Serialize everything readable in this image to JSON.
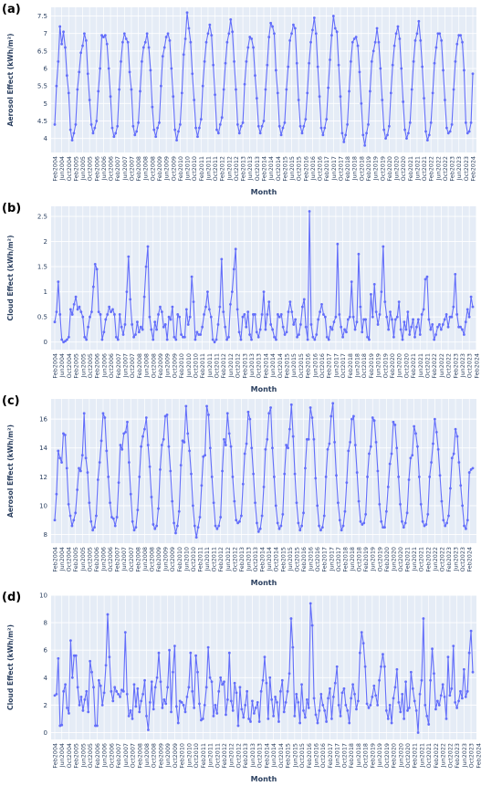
{
  "figure": {
    "xlabel": "Month",
    "x_ticks": [
      "Feb2004",
      "Jun2004",
      "Oct2004",
      "Feb2005",
      "Jun2005",
      "Oct2005",
      "Feb2006",
      "Jun2006",
      "Oct2006",
      "Feb2007",
      "Jun2007",
      "Oct2007",
      "Feb2008",
      "Jun2008",
      "Oct2008",
      "Feb2009",
      "Jun2009",
      "Oct2009",
      "Feb2010",
      "Jun2010",
      "Oct2010",
      "Feb2011",
      "Jun2011",
      "Oct2011",
      "Feb2012",
      "Jun2012",
      "Oct2012",
      "Feb2013",
      "Jun2013",
      "Oct2013",
      "Feb2014",
      "Jun2014",
      "Oct2014",
      "Feb2015",
      "Jun2015",
      "Oct2015",
      "Feb2016",
      "Jun2016",
      "Oct2016",
      "Feb2017",
      "Jun2017",
      "Oct2017",
      "Feb2018",
      "Jun2018",
      "Oct2018",
      "Feb2019",
      "Jun2019",
      "Oct2019",
      "Feb2020",
      "Jun2020",
      "Oct2020",
      "Feb2021",
      "Jun2021",
      "Oct2021",
      "Feb2022",
      "Jun2022",
      "Oct2022",
      "Feb2023",
      "Jun2023",
      "Oct2023",
      "Feb2024"
    ],
    "colors": {
      "plot_bg": "#e5ecf6",
      "grid": "#ffffff",
      "line": "#636efa",
      "text": "#2a3f5f",
      "panel_label": "#000000"
    }
  },
  "chart_data": [
    {
      "panel": "(a)",
      "type": "line",
      "ylabel": "Aerosol Effect (kWh/m²)",
      "ylim": [
        3.6,
        7.75
      ],
      "yticks": [
        4,
        4.5,
        5,
        5.5,
        6,
        6.5,
        7,
        7.5
      ],
      "ytick_labels": [
        "4",
        "4.5",
        "5",
        "5.5",
        "6",
        "6.5",
        "7",
        "7.5"
      ],
      "x": {
        "start": "Feb2004",
        "frequency": "monthly",
        "count": 241
      },
      "values": [
        4.4,
        5.5,
        6.2,
        7.2,
        6.7,
        7.05,
        6.6,
        5.8,
        5.3,
        4.25,
        3.95,
        4.15,
        4.4,
        5.4,
        5.9,
        6.45,
        6.65,
        7.0,
        6.8,
        5.85,
        5.1,
        4.4,
        4.15,
        4.3,
        4.5,
        5.35,
        6.0,
        6.95,
        6.9,
        6.95,
        6.7,
        6.0,
        5.2,
        4.3,
        4.05,
        4.15,
        4.35,
        5.4,
        6.2,
        6.75,
        7.0,
        6.85,
        6.75,
        5.9,
        5.4,
        4.35,
        4.1,
        4.2,
        4.45,
        5.35,
        6.2,
        6.6,
        6.75,
        7.0,
        6.6,
        5.95,
        4.9,
        4.25,
        4.05,
        4.3,
        4.45,
        5.5,
        6.35,
        6.6,
        6.9,
        7.0,
        6.8,
        6.0,
        5.2,
        4.25,
        3.95,
        4.2,
        4.4,
        5.3,
        6.4,
        6.85,
        7.6,
        7.15,
        6.75,
        5.85,
        5.1,
        4.3,
        4.05,
        4.3,
        4.55,
        5.5,
        6.2,
        6.75,
        7.0,
        7.25,
        6.95,
        6.1,
        5.25,
        4.25,
        4.15,
        4.4,
        4.6,
        5.4,
        6.15,
        6.75,
        7.0,
        7.4,
        7.05,
        6.2,
        5.4,
        4.4,
        4.15,
        4.35,
        4.45,
        5.55,
        6.2,
        6.6,
        6.9,
        6.85,
        6.6,
        5.8,
        5.15,
        4.35,
        4.15,
        4.35,
        4.5,
        5.4,
        6.1,
        6.9,
        7.3,
        7.2,
        7.0,
        5.95,
        5.3,
        4.35,
        4.1,
        4.3,
        4.45,
        5.4,
        6.05,
        6.8,
        7.0,
        7.25,
        7.15,
        6.15,
        5.1,
        4.35,
        4.15,
        4.35,
        4.55,
        5.3,
        6.15,
        6.75,
        7.1,
        7.45,
        7.0,
        6.05,
        5.2,
        4.3,
        4.1,
        4.3,
        4.55,
        5.45,
        6.25,
        6.95,
        7.5,
        7.15,
        7.05,
        6.1,
        5.2,
        4.15,
        3.9,
        4.1,
        4.4,
        5.35,
        6.2,
        6.75,
        6.85,
        6.9,
        6.65,
        5.9,
        5.0,
        4.1,
        3.8,
        4.15,
        4.4,
        5.35,
        6.2,
        6.5,
        6.75,
        7.15,
        6.75,
        6.0,
        5.1,
        4.25,
        4.0,
        4.1,
        4.35,
        5.3,
        6.1,
        6.65,
        7.0,
        7.2,
        6.85,
        6.0,
        5.05,
        4.25,
        4.0,
        4.15,
        4.45,
        5.4,
        6.2,
        6.8,
        7.0,
        7.35,
        6.8,
        6.05,
        5.15,
        4.2,
        3.95,
        4.1,
        4.45,
        5.3,
        6.15,
        6.6,
        7.0,
        7.0,
        6.8,
        5.95,
        5.1,
        4.3,
        4.15,
        4.2,
        4.4,
        5.4,
        6.2,
        6.7,
        6.95,
        6.95,
        6.75,
        5.95,
        4.45,
        4.15,
        4.2,
        4.45,
        5.85
      ]
    },
    {
      "panel": "(b)",
      "type": "line",
      "ylabel": "Cloud Effect (kWh/m²)",
      "ylim": [
        -0.15,
        2.7
      ],
      "yticks": [
        0,
        0.5,
        1,
        1.5,
        2,
        2.5
      ],
      "ytick_labels": [
        "0",
        "0.5",
        "1",
        "1.5",
        "2",
        "2.5"
      ],
      "x": {
        "start": "Feb2004",
        "frequency": "monthly",
        "count": 241
      },
      "values": [
        0.4,
        0.6,
        1.2,
        0.55,
        0.05,
        0.0,
        0.02,
        0.05,
        0.1,
        0.65,
        0.55,
        0.75,
        0.9,
        0.65,
        0.7,
        0.6,
        0.5,
        0.1,
        0.05,
        0.3,
        0.5,
        0.6,
        1.1,
        1.55,
        1.45,
        0.6,
        0.55,
        0.05,
        0.2,
        0.45,
        0.55,
        0.7,
        0.6,
        0.65,
        0.55,
        0.1,
        0.05,
        0.55,
        0.3,
        0.15,
        0.35,
        1.0,
        1.7,
        0.85,
        0.35,
        0.1,
        0.15,
        0.4,
        0.2,
        0.3,
        0.25,
        0.9,
        1.5,
        1.9,
        0.5,
        0.25,
        0.05,
        0.4,
        0.25,
        0.55,
        0.7,
        0.6,
        0.3,
        0.35,
        0.05,
        0.5,
        0.45,
        0.7,
        0.1,
        0.05,
        0.55,
        0.5,
        0.15,
        0.1,
        0.1,
        0.65,
        0.35,
        0.5,
        1.3,
        0.8,
        0.05,
        0.2,
        0.15,
        0.15,
        0.3,
        0.55,
        0.7,
        1.0,
        0.65,
        0.5,
        0.05,
        0.0,
        0.05,
        0.35,
        0.7,
        1.65,
        0.6,
        0.3,
        0.05,
        0.1,
        0.75,
        1.0,
        1.45,
        1.85,
        0.65,
        0.2,
        0.05,
        0.5,
        0.55,
        0.3,
        0.6,
        0.15,
        0.05,
        0.55,
        0.55,
        0.2,
        0.1,
        0.25,
        0.55,
        1.0,
        0.25,
        0.55,
        0.8,
        0.35,
        0.25,
        0.1,
        0.05,
        0.55,
        0.5,
        0.55,
        0.3,
        0.15,
        0.2,
        0.6,
        0.8,
        0.6,
        0.35,
        0.45,
        0.1,
        0.15,
        0.35,
        0.7,
        0.85,
        0.3,
        0.05,
        2.6,
        0.35,
        0.1,
        0.05,
        0.15,
        0.45,
        0.6,
        0.75,
        0.55,
        0.5,
        0.1,
        0.05,
        0.3,
        0.25,
        0.4,
        0.5,
        1.95,
        0.55,
        0.3,
        0.1,
        0.25,
        0.2,
        0.45,
        0.5,
        1.2,
        0.5,
        0.25,
        0.4,
        1.75,
        0.7,
        0.2,
        0.45,
        0.45,
        0.1,
        0.05,
        0.95,
        0.5,
        1.15,
        0.6,
        0.35,
        0.55,
        1.0,
        1.9,
        0.8,
        0.5,
        0.25,
        0.6,
        0.45,
        0.1,
        0.45,
        0.5,
        0.8,
        0.25,
        0.05,
        0.4,
        0.25,
        0.6,
        0.15,
        0.3,
        0.45,
        0.1,
        0.3,
        0.45,
        0.15,
        0.55,
        0.65,
        1.25,
        1.3,
        0.45,
        0.25,
        0.35,
        0.05,
        0.15,
        0.3,
        0.35,
        0.25,
        0.35,
        0.45,
        0.55,
        0.3,
        0.5,
        0.5,
        0.7,
        1.35,
        0.55,
        0.3,
        0.3,
        0.25,
        0.15,
        0.4,
        0.65,
        0.5,
        0.9,
        0.7
      ]
    },
    {
      "panel": "(c)",
      "type": "line",
      "ylabel": "Aerosol Effect (kWh/m²)",
      "ylim": [
        7.4,
        17.4
      ],
      "yticks": [
        8,
        10,
        12,
        14,
        16
      ],
      "ytick_labels": [
        "8",
        "10",
        "12",
        "14",
        "16"
      ],
      "x": {
        "start": "Feb2004",
        "frequency": "monthly",
        "count": 241
      },
      "values": [
        9.0,
        10.8,
        13.8,
        13.3,
        13.0,
        15.0,
        14.9,
        12.6,
        10.1,
        9.3,
        8.6,
        9.0,
        9.5,
        11.1,
        12.6,
        12.4,
        13.5,
        16.4,
        13.3,
        12.3,
        10.2,
        8.9,
        8.3,
        8.5,
        9.3,
        11.8,
        13.0,
        14.5,
        16.4,
        16.1,
        13.8,
        12.0,
        10.2,
        9.2,
        9.1,
        8.6,
        9.2,
        11.6,
        14.2,
        13.9,
        15.0,
        15.1,
        15.8,
        13.0,
        10.8,
        8.9,
        8.3,
        8.5,
        9.7,
        12.0,
        14.1,
        14.8,
        15.3,
        16.1,
        14.2,
        12.7,
        10.6,
        8.7,
        8.4,
        8.6,
        9.8,
        12.5,
        14.2,
        14.6,
        16.2,
        16.3,
        14.1,
        12.4,
        10.3,
        8.8,
        8.1,
        8.6,
        9.6,
        12.8,
        14.5,
        14.4,
        16.9,
        15.0,
        13.8,
        12.2,
        10.0,
        8.6,
        7.8,
        8.5,
        9.2,
        11.4,
        13.4,
        13.5,
        16.9,
        16.3,
        14.0,
        12.0,
        10.2,
        8.6,
        8.4,
        8.6,
        9.2,
        12.4,
        14.6,
        14.2,
        16.4,
        15.0,
        14.1,
        12.0,
        10.3,
        9.0,
        8.8,
        8.9,
        9.3,
        11.5,
        13.6,
        14.3,
        16.5,
        16.0,
        14.0,
        12.2,
        10.2,
        8.8,
        8.2,
        8.4,
        9.3,
        11.3,
        13.9,
        14.6,
        16.4,
        16.8,
        14.0,
        12.0,
        10.0,
        8.8,
        8.4,
        8.6,
        9.4,
        12.2,
        14.2,
        14.0,
        15.3,
        17.0,
        14.8,
        12.2,
        10.2,
        8.8,
        8.3,
        8.6,
        9.5,
        12.6,
        14.6,
        14.6,
        16.8,
        16.1,
        14.6,
        11.9,
        10.0,
        8.6,
        8.3,
        8.5,
        9.3,
        12.0,
        13.9,
        14.3,
        16.2,
        17.1,
        14.4,
        12.1,
        10.2,
        9.0,
        8.3,
        8.6,
        9.6,
        11.6,
        13.8,
        14.4,
        16.0,
        16.2,
        14.2,
        12.3,
        10.3,
        8.9,
        8.7,
        8.8,
        9.4,
        12.0,
        13.6,
        14.1,
        16.1,
        15.9,
        14.4,
        12.4,
        10.1,
        8.9,
        8.5,
        8.5,
        9.6,
        11.3,
        12.9,
        13.6,
        15.8,
        15.6,
        14.0,
        12.0,
        10.1,
        8.9,
        8.5,
        8.8,
        9.5,
        11.8,
        13.3,
        13.5,
        15.5,
        15.0,
        14.1,
        12.0,
        10.1,
        8.9,
        8.6,
        8.7,
        9.4,
        12.0,
        13.0,
        14.3,
        16.0,
        15.1,
        13.9,
        12.1,
        10.3,
        9.0,
        8.6,
        8.8,
        9.3,
        11.2,
        13.3,
        13.6,
        15.3,
        14.8,
        13.0,
        11.4,
        10.0,
        8.6,
        8.4,
        9.0,
        12.3,
        12.5,
        12.6
      ]
    },
    {
      "panel": "(d)",
      "type": "line",
      "ylabel": "Cloud Effect (kWh/m²)",
      "ylim": [
        -0.5,
        10
      ],
      "yticks": [
        0,
        2,
        4,
        6,
        8,
        10
      ],
      "ytick_labels": [
        "0",
        "2",
        "4",
        "6",
        "8",
        "10"
      ],
      "x": {
        "start": "Feb2004",
        "frequency": "monthly",
        "count": 241
      },
      "values": [
        2.7,
        2.8,
        5.4,
        0.5,
        0.55,
        3.0,
        3.5,
        1.8,
        1.4,
        6.7,
        4.0,
        5.6,
        5.6,
        3.3,
        2.0,
        2.6,
        1.6,
        2.4,
        3.0,
        1.5,
        5.2,
        4.4,
        3.3,
        0.5,
        0.5,
        3.8,
        3.4,
        2.0,
        2.9,
        4.9,
        8.6,
        5.5,
        3.0,
        2.3,
        3.3,
        3.0,
        2.8,
        2.6,
        3.1,
        3.0,
        7.3,
        2.8,
        1.2,
        1.6,
        1.0,
        3.5,
        1.9,
        3.2,
        1.5,
        2.3,
        2.8,
        3.8,
        1.2,
        0.2,
        2.2,
        3.7,
        1.7,
        3.3,
        4.0,
        5.8,
        3.7,
        1.8,
        2.4,
        2.1,
        3.3,
        6.0,
        1.5,
        4.4,
        6.3,
        1.9,
        0.7,
        2.3,
        2.2,
        2.0,
        1.5,
        2.6,
        3.3,
        5.8,
        3.0,
        1.8,
        5.6,
        4.4,
        2.1,
        0.9,
        1.0,
        2.0,
        3.3,
        6.2,
        4.0,
        3.7,
        1.2,
        2.0,
        1.4,
        3.0,
        4.0,
        3.5,
        3.7,
        1.3,
        2.4,
        5.8,
        2.3,
        1.6,
        3.6,
        2.9,
        0.5,
        3.3,
        1.7,
        1.1,
        2.0,
        3.0,
        1.0,
        0.8,
        2.3,
        1.4,
        1.8,
        2.2,
        0.8,
        3.0,
        3.8,
        5.5,
        3.6,
        1.0,
        4.0,
        2.4,
        1.2,
        2.6,
        2.2,
        0.8,
        3.0,
        3.8,
        1.5,
        2.2,
        3.0,
        4.3,
        8.3,
        6.2,
        1.2,
        2.8,
        2.2,
        0.7,
        3.5,
        1.6,
        1.1,
        2.4,
        1.8,
        9.4,
        7.8,
        2.5,
        1.3,
        0.7,
        1.6,
        2.8,
        2.0,
        1.6,
        0.8,
        2.5,
        3.2,
        1.0,
        2.6,
        3.6,
        4.8,
        2.0,
        1.2,
        2.9,
        3.2,
        2.0,
        1.6,
        0.7,
        2.5,
        3.5,
        2.8,
        1.7,
        2.3,
        5.8,
        7.3,
        6.5,
        4.8,
        2.1,
        1.8,
        2.0,
        2.6,
        3.4,
        2.7,
        2.0,
        3.8,
        4.8,
        5.7,
        4.8,
        1.6,
        1.0,
        2.0,
        0.7,
        2.5,
        3.3,
        4.6,
        2.2,
        1.5,
        2.8,
        1.0,
        3.7,
        1.6,
        1.8,
        4.4,
        3.2,
        2.3,
        1.6,
        0.0,
        2.8,
        3.8,
        8.3,
        2.0,
        1.2,
        0.6,
        3.8,
        6.1,
        4.3,
        1.7,
        2.3,
        2.0,
        2.7,
        3.5,
        2.6,
        1.0,
        5.5,
        2.7,
        3.2,
        6.3,
        2.2,
        1.8,
        2.3,
        3.0,
        2.5,
        4.6,
        2.6,
        3.0,
        5.8,
        7.4,
        4.4
      ]
    }
  ]
}
